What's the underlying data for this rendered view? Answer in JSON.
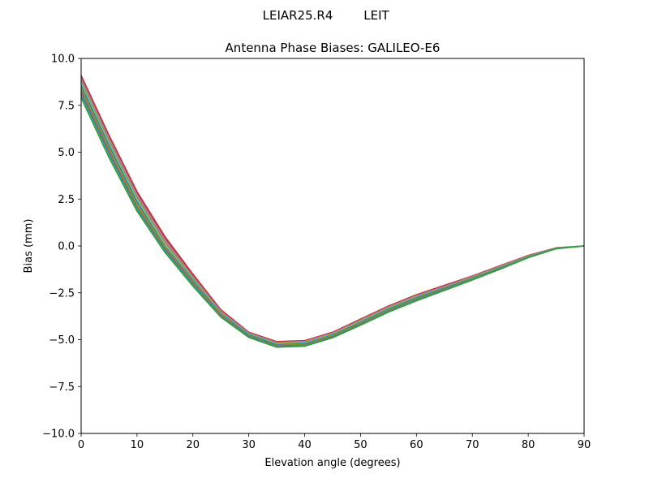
{
  "figure": {
    "suptitle_left": "LEIAR25.R4",
    "suptitle_right": "LEIT"
  },
  "chart_data": {
    "type": "line",
    "title": "Antenna Phase Biases: GALILEO-E6",
    "xlabel": "Elevation angle (degrees)",
    "ylabel": "Bias (mm)",
    "xlim": [
      0,
      90
    ],
    "ylim": [
      -10,
      10
    ],
    "xticks": [
      0,
      10,
      20,
      30,
      40,
      50,
      60,
      70,
      80,
      90
    ],
    "yticks": [
      -10.0,
      -7.5,
      -5.0,
      -2.5,
      0.0,
      2.5,
      5.0,
      7.5,
      10.0
    ],
    "xtick_labels": [
      "0",
      "10",
      "20",
      "30",
      "40",
      "50",
      "60",
      "70",
      "80",
      "90"
    ],
    "ytick_labels": [
      "−10.0",
      "−7.5",
      "−5.0",
      "−2.5",
      "0.0",
      "2.5",
      "5.0",
      "7.5",
      "10.0"
    ],
    "grid": false,
    "legend": "none",
    "x": [
      0,
      5,
      10,
      15,
      20,
      25,
      30,
      35,
      40,
      45,
      50,
      55,
      60,
      65,
      70,
      75,
      80,
      85,
      90
    ],
    "series": [
      {
        "color": "#d62728",
        "values": [
          9.1,
          5.9,
          2.9,
          0.5,
          -1.5,
          -3.4,
          -4.6,
          -5.1,
          -5.05,
          -4.6,
          -3.9,
          -3.2,
          -2.6,
          -2.1,
          -1.6,
          -1.05,
          -0.5,
          -0.1,
          0.0
        ]
      },
      {
        "color": "#8c564b",
        "values": [
          9.0,
          5.8,
          2.8,
          0.4,
          -1.6,
          -3.45,
          -4.62,
          -5.13,
          -5.08,
          -4.63,
          -3.93,
          -3.23,
          -2.63,
          -2.13,
          -1.62,
          -1.07,
          -0.52,
          -0.1,
          0.0
        ]
      },
      {
        "color": "#e377c2",
        "values": [
          8.9,
          5.7,
          2.7,
          0.3,
          -1.65,
          -3.5,
          -4.65,
          -5.16,
          -5.1,
          -4.65,
          -3.96,
          -3.26,
          -2.66,
          -2.16,
          -1.64,
          -1.09,
          -0.53,
          -0.11,
          0.0
        ]
      },
      {
        "color": "#7f7f7f",
        "values": [
          8.8,
          5.6,
          2.6,
          0.2,
          -1.7,
          -3.55,
          -4.68,
          -5.19,
          -5.13,
          -4.68,
          -3.99,
          -3.29,
          -2.69,
          -2.19,
          -1.66,
          -1.11,
          -0.54,
          -0.11,
          0.0
        ]
      },
      {
        "color": "#bcbd22",
        "values": [
          8.7,
          5.5,
          2.5,
          0.1,
          -1.75,
          -3.58,
          -4.7,
          -5.22,
          -5.16,
          -4.7,
          -4.02,
          -3.32,
          -2.72,
          -2.22,
          -1.68,
          -1.13,
          -0.56,
          -0.12,
          0.0
        ]
      },
      {
        "color": "#17becf",
        "values": [
          8.6,
          5.4,
          2.4,
          0.0,
          -1.8,
          -3.6,
          -4.72,
          -5.25,
          -5.19,
          -4.73,
          -4.05,
          -3.35,
          -2.75,
          -2.24,
          -1.7,
          -1.15,
          -0.57,
          -0.12,
          0.0
        ]
      },
      {
        "color": "#1f77b4",
        "values": [
          8.5,
          5.3,
          2.3,
          -0.05,
          -1.85,
          -3.63,
          -4.75,
          -5.28,
          -5.22,
          -4.76,
          -4.08,
          -3.38,
          -2.78,
          -2.26,
          -1.72,
          -1.17,
          -0.58,
          -0.13,
          0.0
        ]
      },
      {
        "color": "#ff7f0e",
        "values": [
          8.4,
          5.2,
          2.2,
          -0.1,
          -1.9,
          -3.66,
          -4.78,
          -5.31,
          -5.25,
          -4.79,
          -4.11,
          -3.41,
          -2.81,
          -2.28,
          -1.74,
          -1.19,
          -0.59,
          -0.13,
          0.0
        ]
      },
      {
        "color": "#2ca02c",
        "values": [
          8.3,
          5.1,
          2.1,
          -0.15,
          -1.95,
          -3.7,
          -4.8,
          -5.33,
          -5.27,
          -4.82,
          -4.14,
          -3.44,
          -2.84,
          -2.3,
          -1.76,
          -1.2,
          -0.6,
          -0.14,
          0.0
        ]
      },
      {
        "color": "#9467bd",
        "values": [
          8.2,
          5.0,
          2.0,
          -0.2,
          -2.0,
          -3.73,
          -4.82,
          -5.35,
          -5.29,
          -4.85,
          -4.17,
          -3.47,
          -2.87,
          -2.32,
          -1.78,
          -1.21,
          -0.61,
          -0.14,
          0.0
        ]
      },
      {
        "color": "#8c564b",
        "values": [
          8.1,
          4.9,
          1.95,
          -0.25,
          -2.05,
          -3.76,
          -4.84,
          -5.37,
          -5.31,
          -4.87,
          -4.19,
          -3.49,
          -2.89,
          -2.34,
          -1.79,
          -1.22,
          -0.62,
          -0.14,
          0.0
        ]
      },
      {
        "color": "#17becf",
        "values": [
          8.0,
          4.8,
          1.9,
          -0.3,
          -2.1,
          -3.78,
          -4.86,
          -5.39,
          -5.33,
          -4.89,
          -4.21,
          -3.51,
          -2.91,
          -2.36,
          -1.8,
          -1.23,
          -0.62,
          -0.15,
          0.0
        ]
      },
      {
        "color": "#2ca02c",
        "values": [
          7.9,
          4.7,
          1.85,
          -0.35,
          -2.15,
          -3.8,
          -4.88,
          -5.4,
          -5.35,
          -4.9,
          -4.23,
          -3.53,
          -2.93,
          -2.38,
          -1.82,
          -1.24,
          -0.63,
          -0.15,
          0.0
        ]
      }
    ]
  }
}
